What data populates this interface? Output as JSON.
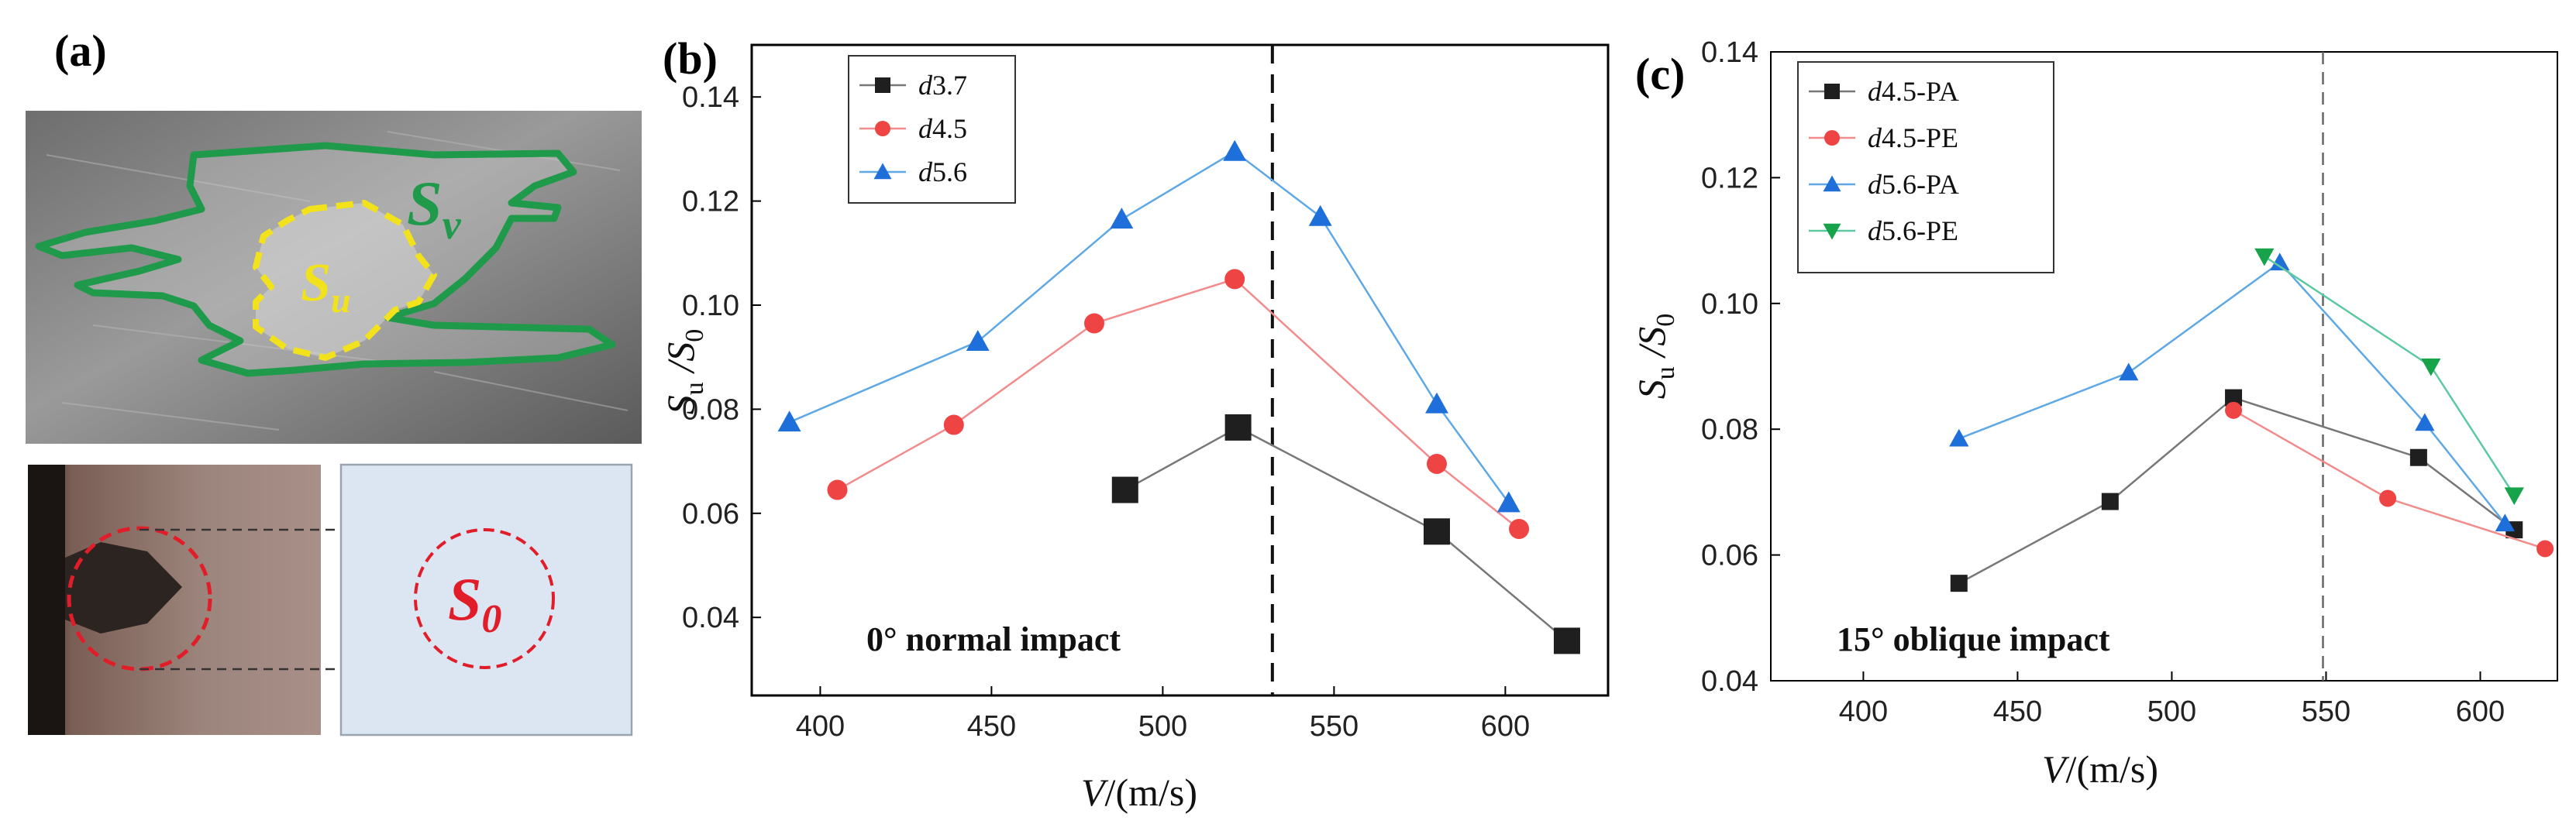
{
  "panels": {
    "a": {
      "label": "(a)",
      "photo_labels": {
        "sv": "S",
        "sv_sub": "v",
        "su": "S",
        "su_sub": "u",
        "s0": "S",
        "s0_sub": "0"
      }
    },
    "b": {
      "label": "(b)"
    },
    "c": {
      "label": "(c)"
    }
  },
  "colors": {
    "black": "#1f1f1f",
    "red": "#ef4444",
    "blue": "#1e6fd9",
    "green": "#16a34a",
    "lineBlack": "#777777",
    "lineRed": "#f28b8b",
    "lineBlue": "#5fa8e6",
    "lineGreen": "#5cc9a0"
  },
  "chart_data": [
    {
      "type": "line",
      "panel": "b",
      "annotation": "0° normal impact",
      "xlabel": {
        "main": "V",
        "unit": "/(m/s)"
      },
      "ylabel": {
        "main": "S",
        "sub": "u",
        "mid": " /S",
        "sub2": "0"
      },
      "xlim": [
        380,
        630
      ],
      "ylim": [
        0.025,
        0.15
      ],
      "xticks": [
        400,
        450,
        500,
        550,
        600
      ],
      "yticks": [
        0.04,
        0.06,
        0.08,
        0.1,
        0.12,
        0.14
      ],
      "ytick_labels": [
        "0.04",
        "0.06",
        "0.08",
        "0.10",
        "0.12",
        "0.14"
      ],
      "vline_x": 532,
      "series": [
        {
          "name": "d3.7",
          "legend_italic": "d",
          "legend_rest": "3.7",
          "marker": "square",
          "color": "#1f1f1f",
          "line": "#777777",
          "x": [
            489,
            522,
            580,
            618
          ],
          "y": [
            0.0645,
            0.0765,
            0.0565,
            0.0355
          ]
        },
        {
          "name": "d4.5",
          "legend_italic": "d",
          "legend_rest": "4.5",
          "marker": "circle",
          "color": "#ef4444",
          "line": "#f28b8b",
          "x": [
            405,
            439,
            480,
            521,
            580,
            604
          ],
          "y": [
            0.0645,
            0.077,
            0.0965,
            0.105,
            0.0695,
            0.057
          ]
        },
        {
          "name": "d5.6",
          "legend_italic": "d",
          "legend_rest": "5.6",
          "marker": "triangle-up",
          "color": "#1e6fd9",
          "line": "#5fa8e6",
          "x": [
            391,
            446,
            488,
            521,
            546,
            580,
            601
          ],
          "y": [
            0.0775,
            0.093,
            0.1165,
            0.1295,
            0.117,
            0.081,
            0.062
          ]
        }
      ]
    },
    {
      "type": "line",
      "panel": "c",
      "annotation": "15° oblique impact",
      "xlabel": {
        "main": "V",
        "unit": "/(m/s)"
      },
      "ylabel": {
        "main": "S",
        "sub": "u",
        "mid": " /S",
        "sub2": "0"
      },
      "xlim": [
        370,
        625
      ],
      "ylim": [
        0.04,
        0.14
      ],
      "xticks": [
        400,
        450,
        500,
        550,
        600
      ],
      "yticks": [
        0.04,
        0.06,
        0.08,
        0.1,
        0.12,
        0.14
      ],
      "ytick_labels": [
        "0.04",
        "0.06",
        "0.08",
        "0.10",
        "0.12",
        "0.14"
      ],
      "vline_x": 549,
      "series": [
        {
          "name": "d4.5-PA",
          "legend_italic": "d",
          "legend_rest": "4.5-PA",
          "marker": "square",
          "color": "#1f1f1f",
          "line": "#777777",
          "x": [
            431,
            480,
            520,
            580,
            611
          ],
          "y": [
            0.0555,
            0.0685,
            0.085,
            0.0755,
            0.064
          ]
        },
        {
          "name": "d4.5-PE",
          "legend_italic": "d",
          "legend_rest": "4.5-PE",
          "marker": "circle",
          "color": "#ef4444",
          "line": "#f28b8b",
          "x": [
            520,
            570,
            621
          ],
          "y": [
            0.083,
            0.069,
            0.061
          ]
        },
        {
          "name": "d5.6-PA",
          "legend_italic": "d",
          "legend_rest": "5.6-PA",
          "marker": "triangle-up",
          "color": "#1e6fd9",
          "line": "#5fa8e6",
          "x": [
            431,
            486,
            535,
            582,
            608
          ],
          "y": [
            0.0785,
            0.089,
            0.1065,
            0.081,
            0.065
          ]
        },
        {
          "name": "d5.6-PE",
          "legend_italic": "d",
          "legend_rest": "5.6-PE",
          "marker": "triangle-down",
          "color": "#16a34a",
          "line": "#5cc9a0",
          "x": [
            530,
            584,
            611
          ],
          "y": [
            0.1075,
            0.09,
            0.0695
          ]
        }
      ]
    }
  ]
}
